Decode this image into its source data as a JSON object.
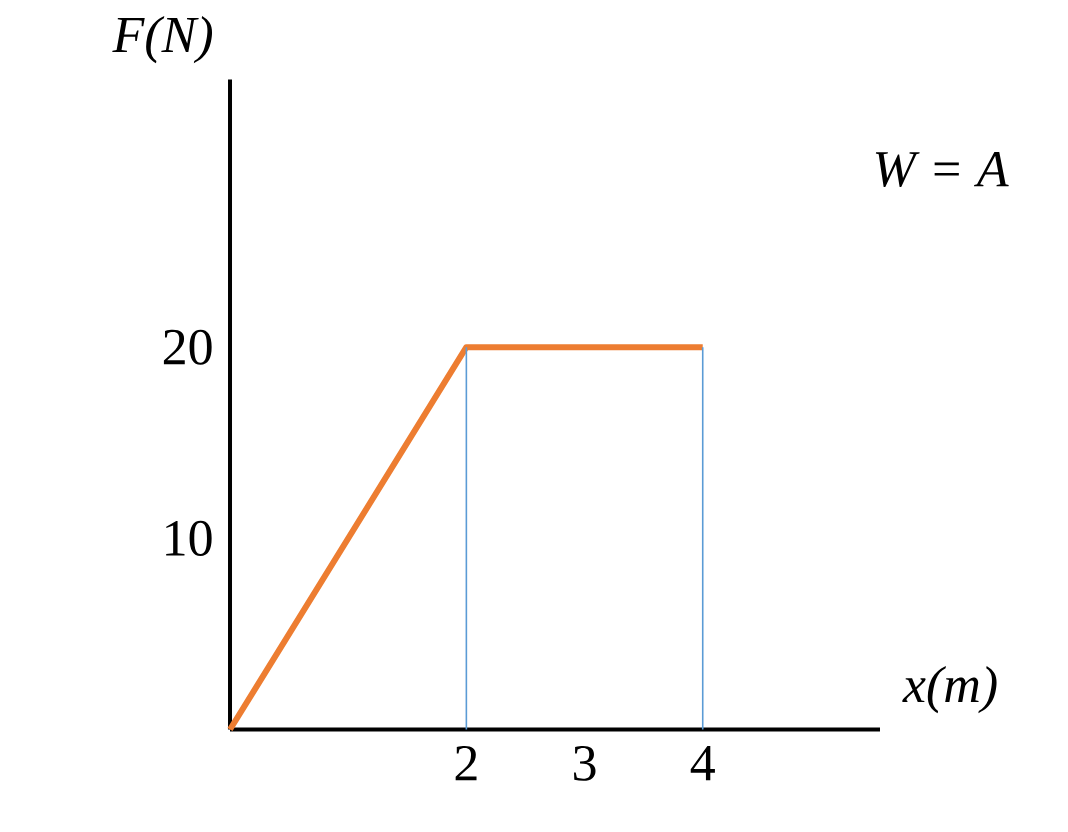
{
  "chart_data": {
    "type": "line",
    "xlabel": "x(m)",
    "ylabel": "F(N)",
    "annotations": [
      "W = A"
    ],
    "xlim": [
      0,
      5.5
    ],
    "ylim": [
      0,
      34
    ],
    "xticks": [
      2,
      3,
      4
    ],
    "yticks": [
      10,
      20
    ],
    "series": [
      {
        "color": "#ed7d31",
        "x": [
          0,
          2,
          4
        ],
        "values": [
          0,
          20,
          20
        ]
      },
      {
        "color": "#5b9bd5",
        "x": [
          2,
          2
        ],
        "values": [
          0,
          20
        ]
      },
      {
        "color": "#5b9bd5",
        "x": [
          4,
          4
        ],
        "values": [
          0,
          20
        ]
      }
    ]
  }
}
